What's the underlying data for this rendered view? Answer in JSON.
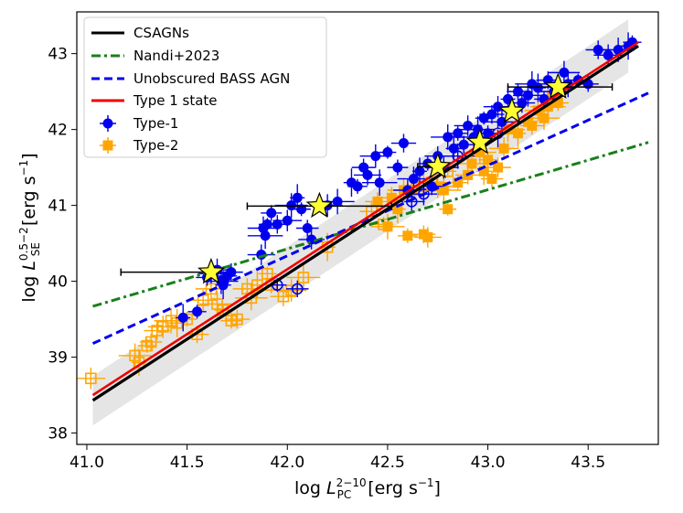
{
  "chart_data": {
    "type": "scatter",
    "title": "",
    "xlabel": {
      "main": "log ",
      "sym": "L",
      "sub": "PC",
      "sup": "2−10",
      "units": " [erg s",
      "unit_sup": "−1",
      "close": "]"
    },
    "ylabel": {
      "main": "log ",
      "sym": "L",
      "sub": "SE",
      "sup": "0.5−2",
      "units": " [erg s",
      "unit_sup": "−1",
      "close": "]"
    },
    "xlim": [
      40.95,
      43.85
    ],
    "ylim": [
      37.85,
      43.55
    ],
    "xticks": [
      41.0,
      41.5,
      42.0,
      42.5,
      43.0,
      43.5
    ],
    "yticks": [
      38,
      39,
      40,
      41,
      42,
      43
    ],
    "xtick_labels": [
      "41.0",
      "41.5",
      "42.0",
      "42.5",
      "43.0",
      "43.5"
    ],
    "ytick_labels": [
      "38",
      "39",
      "40",
      "41",
      "42",
      "43"
    ],
    "colors": {
      "csagns": "#000000",
      "nandi": "#1a7f1a",
      "bass": "#0000ee",
      "type1state": "#ee0000",
      "type1": "#0000ee",
      "type2": "#ffa500",
      "band": "#dcdcdc",
      "star": "#ffff33"
    },
    "legend": {
      "position": "top-left",
      "entries": [
        {
          "label": "CSAGNs",
          "kind": "line-solid-black"
        },
        {
          "label": "Nandi+2023",
          "kind": "line-dashdot-green"
        },
        {
          "label": "Unobscured BASS AGN",
          "kind": "line-dashed-blue"
        },
        {
          "label": "Type 1 state",
          "kind": "line-solid-red"
        },
        {
          "label": "Type-1",
          "kind": "marker-circle-blue"
        },
        {
          "label": "Type-2",
          "kind": "marker-square-orange"
        }
      ]
    },
    "lines": {
      "csagns": {
        "x": [
          41.03,
          43.75
        ],
        "y": [
          38.43,
          43.1
        ]
      },
      "type1_state": {
        "x": [
          41.03,
          43.75
        ],
        "y": [
          38.5,
          43.15
        ]
      },
      "bass": {
        "x": [
          41.03,
          43.8
        ],
        "y": [
          39.18,
          42.48
        ]
      },
      "nandi": {
        "x": [
          41.03,
          43.8
        ],
        "y": [
          39.67,
          41.83
        ]
      },
      "band_upper": {
        "x": [
          41.03,
          43.7
        ],
        "y": [
          38.75,
          43.45
        ]
      },
      "band_lower": {
        "x": [
          41.03,
          43.7
        ],
        "y": [
          38.1,
          42.75
        ]
      }
    },
    "stars": [
      {
        "x": 41.62,
        "y": 40.12,
        "xerr": [
          0.45,
          0.0
        ]
      },
      {
        "x": 42.16,
        "y": 40.99,
        "xerr": [
          0.36,
          0.36
        ]
      },
      {
        "x": 42.75,
        "y": 41.51,
        "xerr": [
          0.1,
          0.0
        ]
      },
      {
        "x": 42.96,
        "y": 41.83,
        "xerr": [
          0.0,
          0.0
        ]
      },
      {
        "x": 43.12,
        "y": 42.24,
        "xerr": [
          0.0,
          0.0
        ]
      },
      {
        "x": 43.35,
        "y": 42.56,
        "xerr": [
          0.25,
          0.27
        ]
      }
    ],
    "type1_filled": [
      [
        41.48,
        39.52
      ],
      [
        41.55,
        39.6
      ],
      [
        41.6,
        40.05
      ],
      [
        41.62,
        40.1
      ],
      [
        41.65,
        40.15
      ],
      [
        41.67,
        40.0
      ],
      [
        41.68,
        39.95
      ],
      [
        41.7,
        40.07
      ],
      [
        41.72,
        40.12
      ],
      [
        41.87,
        40.35
      ],
      [
        41.88,
        40.7
      ],
      [
        41.89,
        40.6
      ],
      [
        41.9,
        40.75
      ],
      [
        41.92,
        40.9
      ],
      [
        41.95,
        40.75
      ],
      [
        42.0,
        40.8
      ],
      [
        42.02,
        41.0
      ],
      [
        42.05,
        41.1
      ],
      [
        42.07,
        40.95
      ],
      [
        42.1,
        40.7
      ],
      [
        42.12,
        40.55
      ],
      [
        42.2,
        41.0
      ],
      [
        42.25,
        41.05
      ],
      [
        42.32,
        41.3
      ],
      [
        42.35,
        41.25
      ],
      [
        42.38,
        41.5
      ],
      [
        42.4,
        41.4
      ],
      [
        42.44,
        41.65
      ],
      [
        42.46,
        41.3
      ],
      [
        42.5,
        41.7
      ],
      [
        42.55,
        41.5
      ],
      [
        42.58,
        41.82
      ],
      [
        42.6,
        41.2
      ],
      [
        42.63,
        41.35
      ],
      [
        42.66,
        41.45
      ],
      [
        42.7,
        41.55
      ],
      [
        42.72,
        41.25
      ],
      [
        42.75,
        41.65
      ],
      [
        42.78,
        41.5
      ],
      [
        42.8,
        41.9
      ],
      [
        42.83,
        41.75
      ],
      [
        42.85,
        41.95
      ],
      [
        42.88,
        41.8
      ],
      [
        42.9,
        42.05
      ],
      [
        42.93,
        41.9
      ],
      [
        42.95,
        42.0
      ],
      [
        42.98,
        42.15
      ],
      [
        43.0,
        41.95
      ],
      [
        43.02,
        42.2
      ],
      [
        43.05,
        42.3
      ],
      [
        43.07,
        42.1
      ],
      [
        43.1,
        42.4
      ],
      [
        43.12,
        42.25
      ],
      [
        43.15,
        42.5
      ],
      [
        43.17,
        42.35
      ],
      [
        43.2,
        42.45
      ],
      [
        43.22,
        42.6
      ],
      [
        43.25,
        42.55
      ],
      [
        43.28,
        42.4
      ],
      [
        43.3,
        42.65
      ],
      [
        43.33,
        42.5
      ],
      [
        43.38,
        42.75
      ],
      [
        43.4,
        42.6
      ],
      [
        43.45,
        42.65
      ],
      [
        43.5,
        42.6
      ],
      [
        43.55,
        43.05
      ],
      [
        43.6,
        42.98
      ],
      [
        43.65,
        43.05
      ],
      [
        43.7,
        43.1
      ],
      [
        43.72,
        43.15
      ]
    ],
    "type1_open": [
      [
        41.95,
        39.95
      ],
      [
        42.05,
        39.9
      ],
      [
        42.62,
        41.05
      ],
      [
        42.68,
        41.15
      ],
      [
        42.85,
        41.65
      ],
      [
        43.05,
        41.95
      ]
    ],
    "type2_filled": [
      [
        42.5,
        40.72
      ],
      [
        42.55,
        40.95
      ],
      [
        42.6,
        40.6
      ],
      [
        42.68,
        40.62
      ],
      [
        42.7,
        40.58
      ],
      [
        42.75,
        41.25
      ],
      [
        42.78,
        41.2
      ],
      [
        42.8,
        40.95
      ],
      [
        42.85,
        41.3
      ],
      [
        42.9,
        41.4
      ],
      [
        42.92,
        41.55
      ],
      [
        42.96,
        41.7
      ],
      [
        42.98,
        41.45
      ],
      [
        43.0,
        41.6
      ],
      [
        43.02,
        41.35
      ],
      [
        43.05,
        41.5
      ],
      [
        43.08,
        41.75
      ],
      [
        43.1,
        42.0
      ],
      [
        43.15,
        41.95
      ],
      [
        43.2,
        42.1
      ],
      [
        43.22,
        42.05
      ],
      [
        43.25,
        42.25
      ],
      [
        43.28,
        42.15
      ],
      [
        43.3,
        42.3
      ],
      [
        43.32,
        42.45
      ],
      [
        43.35,
        42.35
      ],
      [
        42.45,
        41.05
      ],
      [
        42.52,
        41.1
      ],
      [
        42.58,
        41.2
      ]
    ],
    "type2_open": [
      [
        41.02,
        38.72
      ],
      [
        41.24,
        39.02
      ],
      [
        41.26,
        38.93
      ],
      [
        41.3,
        39.15
      ],
      [
        41.32,
        39.2
      ],
      [
        41.35,
        39.35
      ],
      [
        41.38,
        39.4
      ],
      [
        41.42,
        39.48
      ],
      [
        41.45,
        39.45
      ],
      [
        41.5,
        39.5
      ],
      [
        41.55,
        39.3
      ],
      [
        41.58,
        39.75
      ],
      [
        41.62,
        39.9
      ],
      [
        41.65,
        39.7
      ],
      [
        41.68,
        39.62
      ],
      [
        41.72,
        39.48
      ],
      [
        41.75,
        39.5
      ],
      [
        41.8,
        39.9
      ],
      [
        41.82,
        39.78
      ],
      [
        41.85,
        39.95
      ],
      [
        41.9,
        40.1
      ],
      [
        41.92,
        39.95
      ],
      [
        41.98,
        39.8
      ],
      [
        42.02,
        39.88
      ],
      [
        42.08,
        40.05
      ],
      [
        42.2,
        40.45
      ],
      [
        42.48,
        40.75
      ],
      [
        42.42,
        40.92
      ],
      [
        42.62,
        41.2
      ],
      [
        42.68,
        41.25
      ],
      [
        42.72,
        41.3
      ],
      [
        42.8,
        41.45
      ]
    ]
  }
}
